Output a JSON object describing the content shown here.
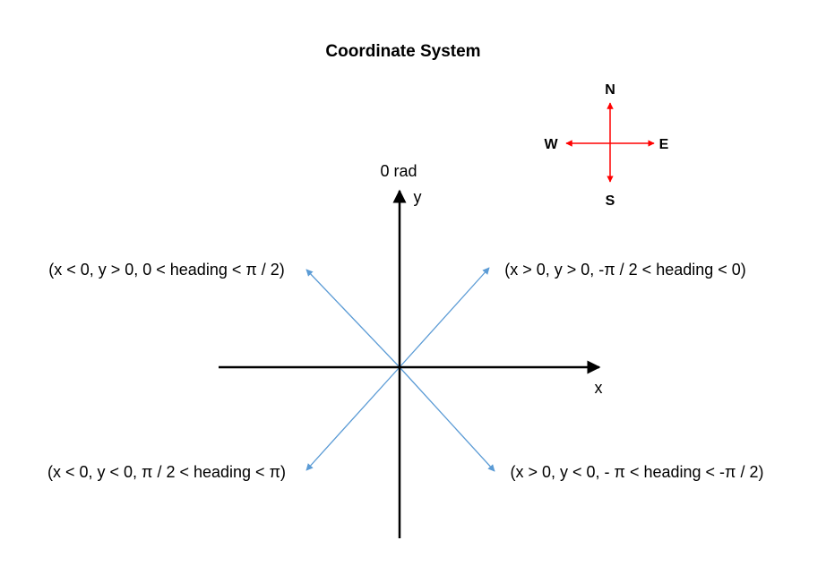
{
  "title": "Coordinate System",
  "compass": {
    "north": "N",
    "south": "S",
    "east": "E",
    "west": "W",
    "color": "#ff0000"
  },
  "axes": {
    "x_label": "x",
    "y_label": "y",
    "zero_label": "0 rad",
    "color": "#000000"
  },
  "quadrants": {
    "upper_left": "(x < 0, y > 0, 0 < heading < π / 2)",
    "upper_right": "(x > 0, y > 0, -π / 2 < heading < 0)",
    "lower_left": "(x < 0, y < 0, π / 2 < heading < π)",
    "lower_right": "(x > 0, y < 0, - π < heading < -π / 2)"
  },
  "diagonal_color": "#5b9bd5"
}
